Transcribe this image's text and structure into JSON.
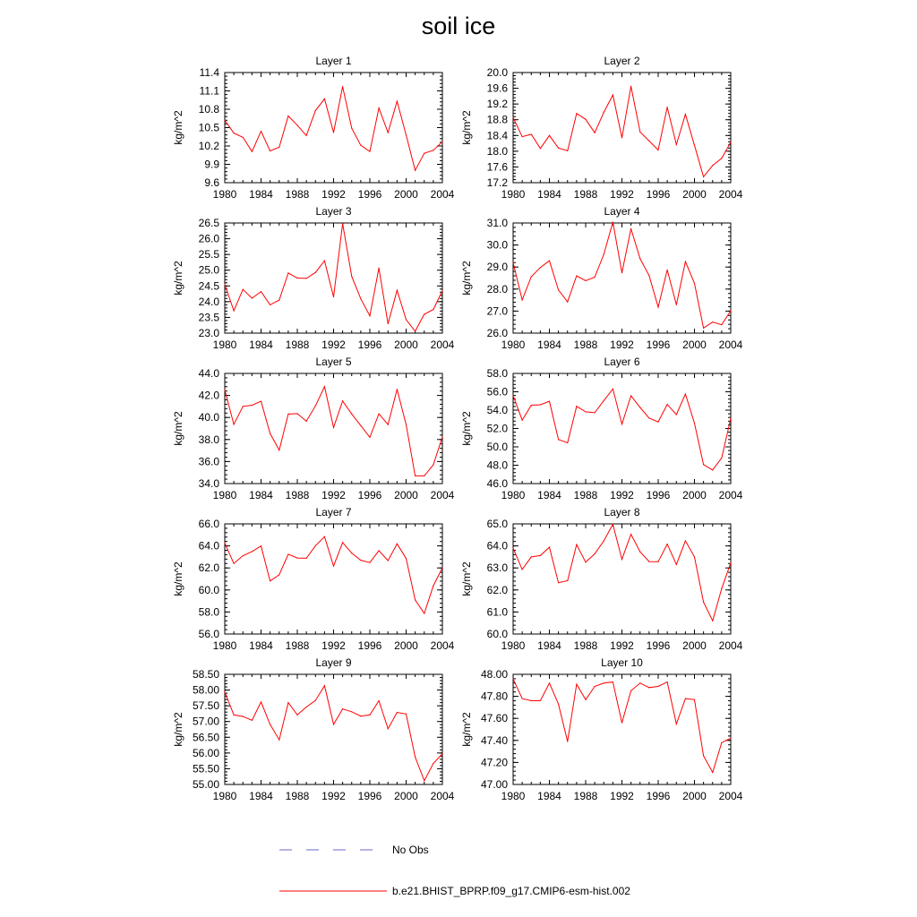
{
  "title": "soil ice",
  "legend": {
    "no_obs_label": "No Obs",
    "no_obs_color": "#6a6acd",
    "model_label": "b.e21.BHIST_BPRP.f09_g17.CMIP6-esm-hist.002",
    "model_color": "#ff0000"
  },
  "chart_data": [
    {
      "type": "line",
      "title": "Layer 1",
      "ylabel": "kg/m^2",
      "x": [
        1980,
        1981,
        1982,
        1983,
        1984,
        1985,
        1986,
        1987,
        1988,
        1989,
        1990,
        1991,
        1992,
        1993,
        1994,
        1995,
        1996,
        1997,
        1998,
        1999,
        2000,
        2001,
        2002,
        2003,
        2004
      ],
      "xticks": [
        1980,
        1984,
        1988,
        1992,
        1996,
        2000,
        2004
      ],
      "xlim": [
        1980,
        2004
      ],
      "yticks": [
        "9.6",
        "9.9",
        "10.2",
        "10.5",
        "10.8",
        "11.1",
        "11.4"
      ],
      "ylim": [
        9.6,
        11.4
      ],
      "series": [
        {
          "values": [
            10.62,
            10.41,
            10.34,
            10.11,
            10.44,
            10.12,
            10.18,
            10.69,
            10.54,
            10.37,
            10.78,
            10.97,
            10.42,
            11.17,
            10.49,
            10.21,
            10.11,
            10.82,
            10.42,
            10.93,
            10.38,
            9.8,
            10.08,
            10.13,
            10.27
          ]
        }
      ]
    },
    {
      "type": "line",
      "title": "Layer 2",
      "ylabel": "kg/m^2",
      "x": [
        1980,
        1981,
        1982,
        1983,
        1984,
        1985,
        1986,
        1987,
        1988,
        1989,
        1990,
        1991,
        1992,
        1993,
        1994,
        1995,
        1996,
        1997,
        1998,
        1999,
        2000,
        2001,
        2002,
        2003,
        2004
      ],
      "xticks": [
        1980,
        1984,
        1988,
        1992,
        1996,
        2000,
        2004
      ],
      "xlim": [
        1980,
        2004
      ],
      "yticks": [
        "17.2",
        "17.6",
        "18.0",
        "18.4",
        "18.8",
        "19.2",
        "19.6",
        "20.0"
      ],
      "ylim": [
        17.2,
        20.0
      ],
      "series": [
        {
          "values": [
            18.86,
            18.37,
            18.43,
            18.07,
            18.4,
            18.08,
            18.01,
            18.96,
            18.81,
            18.47,
            18.99,
            19.43,
            18.34,
            19.65,
            18.49,
            18.26,
            18.03,
            19.12,
            18.17,
            18.94,
            18.15,
            17.35,
            17.64,
            17.82,
            18.23
          ]
        }
      ]
    },
    {
      "type": "line",
      "title": "Layer 3",
      "ylabel": "kg/m^2",
      "x": [
        1980,
        1981,
        1982,
        1983,
        1984,
        1985,
        1986,
        1987,
        1988,
        1989,
        1990,
        1991,
        1992,
        1993,
        1994,
        1995,
        1996,
        1997,
        1998,
        1999,
        2000,
        2001,
        2002,
        2003,
        2004
      ],
      "xticks": [
        1980,
        1984,
        1988,
        1992,
        1996,
        2000,
        2004
      ],
      "xlim": [
        1980,
        2004
      ],
      "yticks": [
        "23.0",
        "23.5",
        "24.0",
        "24.5",
        "25.0",
        "25.5",
        "26.0",
        "26.5"
      ],
      "ylim": [
        23.0,
        26.5
      ],
      "series": [
        {
          "values": [
            24.55,
            23.71,
            24.39,
            24.11,
            24.32,
            23.9,
            24.05,
            24.91,
            24.75,
            24.74,
            24.93,
            25.3,
            24.15,
            26.48,
            24.8,
            24.09,
            23.55,
            25.07,
            23.3,
            24.36,
            23.43,
            23.06,
            23.6,
            23.75,
            24.35
          ]
        }
      ]
    },
    {
      "type": "line",
      "title": "Layer 4",
      "ylabel": "kg/m^2",
      "x": [
        1980,
        1981,
        1982,
        1983,
        1984,
        1985,
        1986,
        1987,
        1988,
        1989,
        1990,
        1991,
        1992,
        1993,
        1994,
        1995,
        1996,
        1997,
        1998,
        1999,
        2000,
        2001,
        2002,
        2003,
        2004
      ],
      "xticks": [
        1980,
        1984,
        1988,
        1992,
        1996,
        2000,
        2004
      ],
      "xlim": [
        1980,
        2004
      ],
      "yticks": [
        "26.0",
        "27.0",
        "28.0",
        "29.0",
        "30.0",
        "31.0"
      ],
      "ylim": [
        26.0,
        31.0
      ],
      "series": [
        {
          "values": [
            29.2,
            27.51,
            28.56,
            28.98,
            29.29,
            27.96,
            27.42,
            28.6,
            28.38,
            28.54,
            29.58,
            31.04,
            28.74,
            30.74,
            29.38,
            28.61,
            27.18,
            28.87,
            27.29,
            29.25,
            28.26,
            26.23,
            26.5,
            26.38,
            27.02
          ]
        }
      ]
    },
    {
      "type": "line",
      "title": "Layer 5",
      "ylabel": "kg/m^2",
      "x": [
        1980,
        1981,
        1982,
        1983,
        1984,
        1985,
        1986,
        1987,
        1988,
        1989,
        1990,
        1991,
        1992,
        1993,
        1994,
        1995,
        1996,
        1997,
        1998,
        1999,
        2000,
        2001,
        2002,
        2003,
        2004
      ],
      "xticks": [
        1980,
        1984,
        1988,
        1992,
        1996,
        2000,
        2004
      ],
      "xlim": [
        1980,
        2004
      ],
      "yticks": [
        "34.0",
        "36.0",
        "38.0",
        "40.0",
        "42.0",
        "44.0"
      ],
      "ylim": [
        34.0,
        44.0
      ],
      "series": [
        {
          "values": [
            42.52,
            39.37,
            41.01,
            41.11,
            41.47,
            38.55,
            37.04,
            40.31,
            40.35,
            39.66,
            41.06,
            42.8,
            39.09,
            41.5,
            40.32,
            39.26,
            38.2,
            40.33,
            39.36,
            42.56,
            39.36,
            34.7,
            34.7,
            35.71,
            38.24
          ]
        }
      ]
    },
    {
      "type": "line",
      "title": "Layer 6",
      "ylabel": "kg/m^2",
      "x": [
        1980,
        1981,
        1982,
        1983,
        1984,
        1985,
        1986,
        1987,
        1988,
        1989,
        1990,
        1991,
        1992,
        1993,
        1994,
        1995,
        1996,
        1997,
        1998,
        1999,
        2000,
        2001,
        2002,
        2003,
        2004
      ],
      "xticks": [
        1980,
        1984,
        1988,
        1992,
        1996,
        2000,
        2004
      ],
      "xlim": [
        1980,
        2004
      ],
      "yticks": [
        "46.0",
        "48.0",
        "50.0",
        "52.0",
        "54.0",
        "56.0",
        "58.0"
      ],
      "ylim": [
        46.0,
        58.0
      ],
      "series": [
        {
          "values": [
            55.6,
            52.92,
            54.54,
            54.59,
            54.97,
            50.8,
            50.44,
            54.42,
            53.81,
            53.72,
            55.04,
            56.31,
            52.47,
            55.57,
            54.29,
            53.12,
            52.72,
            54.62,
            53.51,
            55.76,
            52.58,
            48.07,
            47.48,
            48.8,
            53.1
          ]
        }
      ]
    },
    {
      "type": "line",
      "title": "Layer 7",
      "ylabel": "kg/m^2",
      "x": [
        1980,
        1981,
        1982,
        1983,
        1984,
        1985,
        1986,
        1987,
        1988,
        1989,
        1990,
        1991,
        1992,
        1993,
        1994,
        1995,
        1996,
        1997,
        1998,
        1999,
        2000,
        2001,
        2002,
        2003,
        2004
      ],
      "xticks": [
        1980,
        1984,
        1988,
        1992,
        1996,
        2000,
        2004
      ],
      "xlim": [
        1980,
        2004
      ],
      "yticks": [
        "56.0",
        "58.0",
        "60.0",
        "62.0",
        "64.0",
        "66.0"
      ],
      "ylim": [
        56.0,
        66.0
      ],
      "series": [
        {
          "values": [
            64.26,
            62.41,
            63.11,
            63.49,
            63.99,
            60.81,
            61.38,
            63.24,
            62.9,
            62.88,
            64.02,
            64.84,
            62.17,
            64.31,
            63.34,
            62.69,
            62.49,
            63.57,
            62.67,
            64.19,
            62.86,
            59.1,
            57.87,
            60.38,
            62.01
          ]
        }
      ]
    },
    {
      "type": "line",
      "title": "Layer 8",
      "ylabel": "kg/m^2",
      "x": [
        1980,
        1981,
        1982,
        1983,
        1984,
        1985,
        1986,
        1987,
        1988,
        1989,
        1990,
        1991,
        1992,
        1993,
        1994,
        1995,
        1996,
        1997,
        1998,
        1999,
        2000,
        2001,
        2002,
        2003,
        2004
      ],
      "xticks": [
        1980,
        1984,
        1988,
        1992,
        1996,
        2000,
        2004
      ],
      "xlim": [
        1980,
        2004
      ],
      "yticks": [
        "60.0",
        "61.0",
        "62.0",
        "63.0",
        "64.0",
        "65.0"
      ],
      "ylim": [
        60.0,
        65.0
      ],
      "series": [
        {
          "values": [
            63.9,
            62.93,
            63.5,
            63.56,
            63.94,
            62.33,
            62.42,
            64.06,
            63.26,
            63.64,
            64.23,
            64.98,
            63.39,
            64.53,
            63.73,
            63.29,
            63.28,
            64.08,
            63.16,
            64.23,
            63.5,
            61.45,
            60.6,
            62.06,
            63.23
          ]
        }
      ]
    },
    {
      "type": "line",
      "title": "Layer 9",
      "ylabel": "kg/m^2",
      "x": [
        1980,
        1981,
        1982,
        1983,
        1984,
        1985,
        1986,
        1987,
        1988,
        1989,
        1990,
        1991,
        1992,
        1993,
        1994,
        1995,
        1996,
        1997,
        1998,
        1999,
        2000,
        2001,
        2002,
        2003,
        2004
      ],
      "xticks": [
        1980,
        1984,
        1988,
        1992,
        1996,
        2000,
        2004
      ],
      "xlim": [
        1980,
        2004
      ],
      "yticks": [
        "55.00",
        "55.50",
        "56.00",
        "56.50",
        "57.00",
        "57.50",
        "58.00",
        "58.50"
      ],
      "ylim": [
        55.0,
        58.5
      ],
      "series": [
        {
          "values": [
            57.94,
            57.21,
            57.16,
            57.04,
            57.62,
            56.91,
            56.42,
            57.6,
            57.21,
            57.46,
            57.67,
            58.14,
            56.91,
            57.4,
            57.31,
            57.17,
            57.21,
            57.66,
            56.77,
            57.29,
            57.24,
            55.87,
            55.12,
            55.67,
            55.98
          ]
        }
      ]
    },
    {
      "type": "line",
      "title": "Layer 10",
      "ylabel": "kg/m^2",
      "x": [
        1980,
        1981,
        1982,
        1983,
        1984,
        1985,
        1986,
        1987,
        1988,
        1989,
        1990,
        1991,
        1992,
        1993,
        1994,
        1995,
        1996,
        1997,
        1998,
        1999,
        2000,
        2001,
        2002,
        2003,
        2004
      ],
      "xticks": [
        1980,
        1984,
        1988,
        1992,
        1996,
        2000,
        2004
      ],
      "xlim": [
        1980,
        2004
      ],
      "yticks": [
        "47.00",
        "47.20",
        "47.40",
        "47.60",
        "47.80",
        "48.00"
      ],
      "ylim": [
        47.0,
        48.0
      ],
      "series": [
        {
          "values": [
            47.96,
            47.78,
            47.76,
            47.76,
            47.92,
            47.73,
            47.39,
            47.91,
            47.77,
            47.89,
            47.92,
            47.93,
            47.56,
            47.85,
            47.92,
            47.88,
            47.89,
            47.93,
            47.55,
            47.78,
            47.77,
            47.26,
            47.11,
            47.38,
            47.42
          ]
        }
      ]
    }
  ]
}
